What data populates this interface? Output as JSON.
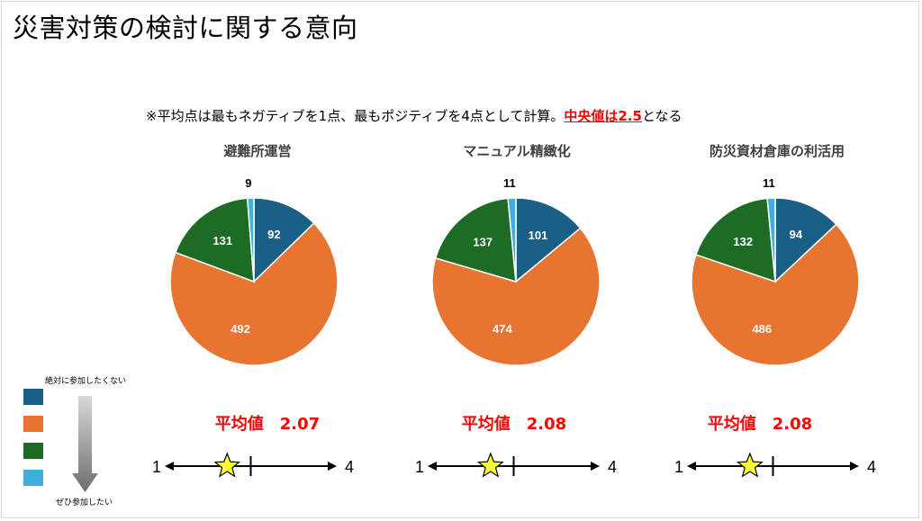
{
  "page": {
    "title": "災害対策の検討に関する意向",
    "note_prefix": "※平均点は最もネガティブを1点、最もポジティブを4点として計算。",
    "note_highlight": "中央値は2.5",
    "note_suffix": "となる"
  },
  "colors": {
    "never": "#1a5f86",
    "rather_not": "#e87431",
    "rather_yes": "#1d6b25",
    "definitely": "#3fb0de",
    "avg_text": "#ff0000",
    "star": "#ffff33"
  },
  "legend": {
    "top_label": "絶対に参加したくない",
    "bottom_label": "ぜひ参加したい"
  },
  "chart_data": [
    {
      "type": "pie",
      "title": "避難所運営",
      "labels": [
        "",
        "",
        "",
        ""
      ],
      "values": [
        92,
        492,
        131,
        9
      ],
      "average_label": "平均値",
      "average": "2.07",
      "average_num": 2.07,
      "scale_min": "1",
      "scale_max": "4",
      "scale_mid": 2.5
    },
    {
      "type": "pie",
      "title": "マニュアル精緻化",
      "labels": [
        "",
        "",
        "",
        ""
      ],
      "values": [
        101,
        474,
        137,
        11
      ],
      "average_label": "平均値",
      "average": "2.08",
      "average_num": 2.08,
      "scale_min": "1",
      "scale_max": "4",
      "scale_mid": 2.5
    },
    {
      "type": "pie",
      "title": "防災資材倉庫の利活用",
      "labels": [
        "",
        "",
        "",
        ""
      ],
      "values": [
        94,
        486,
        132,
        11
      ],
      "average_label": "平均値",
      "average": "2.08",
      "average_num": 2.08,
      "scale_min": "1",
      "scale_max": "4",
      "scale_mid": 2.5
    }
  ]
}
